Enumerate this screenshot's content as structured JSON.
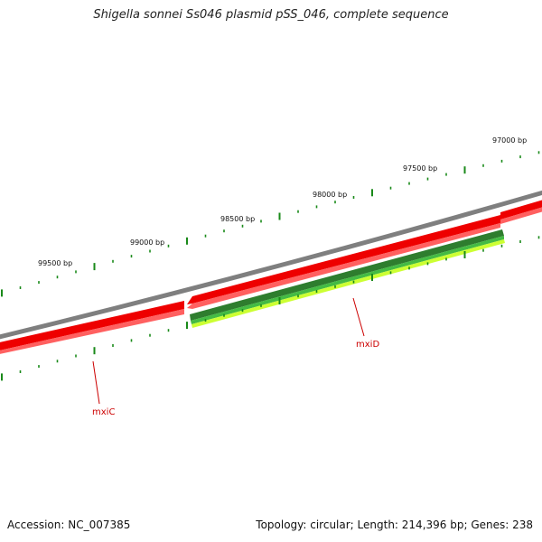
{
  "title": "Shigella sonnei Ss046 plasmid pSS_046, complete sequence",
  "footer": {
    "accession": "Accession: NC_007385",
    "summary": "Topology: circular; Length: 214,396 bp; Genes: 238"
  },
  "ticks": [
    {
      "label": "97000 bp"
    },
    {
      "label": "97500 bp"
    },
    {
      "label": "98000 bp"
    },
    {
      "label": "98500 bp"
    },
    {
      "label": "99000 bp"
    },
    {
      "label": "99500 bp"
    }
  ],
  "genes": [
    {
      "name": "mxiC"
    },
    {
      "name": "mxiD"
    }
  ],
  "colors": {
    "backbone": "#7f7f7f",
    "gene_red": "#ee0000",
    "gene_red_light": "#ff6060",
    "feature_dark_green": "#2e7d2e",
    "feature_light_green": "#ccff33",
    "tick_green": "#1a8a1a",
    "label_red": "#cc0000"
  }
}
